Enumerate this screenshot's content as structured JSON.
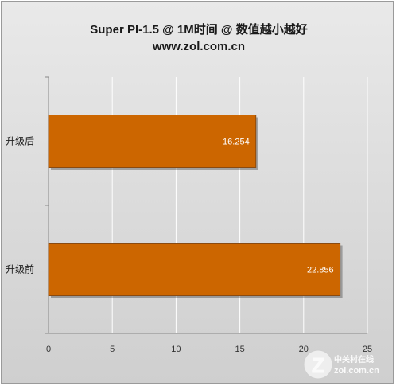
{
  "chart_data": {
    "type": "bar",
    "orientation": "horizontal",
    "title": "Super PI-1.5 @ 1M时间 @ 数值越小越好",
    "subtitle": "www.zol.com.cn",
    "categories": [
      "升级后",
      "升级前"
    ],
    "values": [
      16.254,
      22.856
    ],
    "data_labels": [
      "16.254",
      "22.856"
    ],
    "xlim": [
      0,
      25
    ],
    "x_ticks": [
      "0",
      "5",
      "10",
      "15",
      "20",
      "25"
    ],
    "grid": true,
    "legend": "none",
    "colors": {
      "bar": "#CC6600",
      "bar_border": "#8a4a10",
      "grid": "#ffffff"
    }
  },
  "watermark": {
    "logo_letter": "Z",
    "brand_cn": "中关村在线",
    "site": "zol.com.cn"
  }
}
